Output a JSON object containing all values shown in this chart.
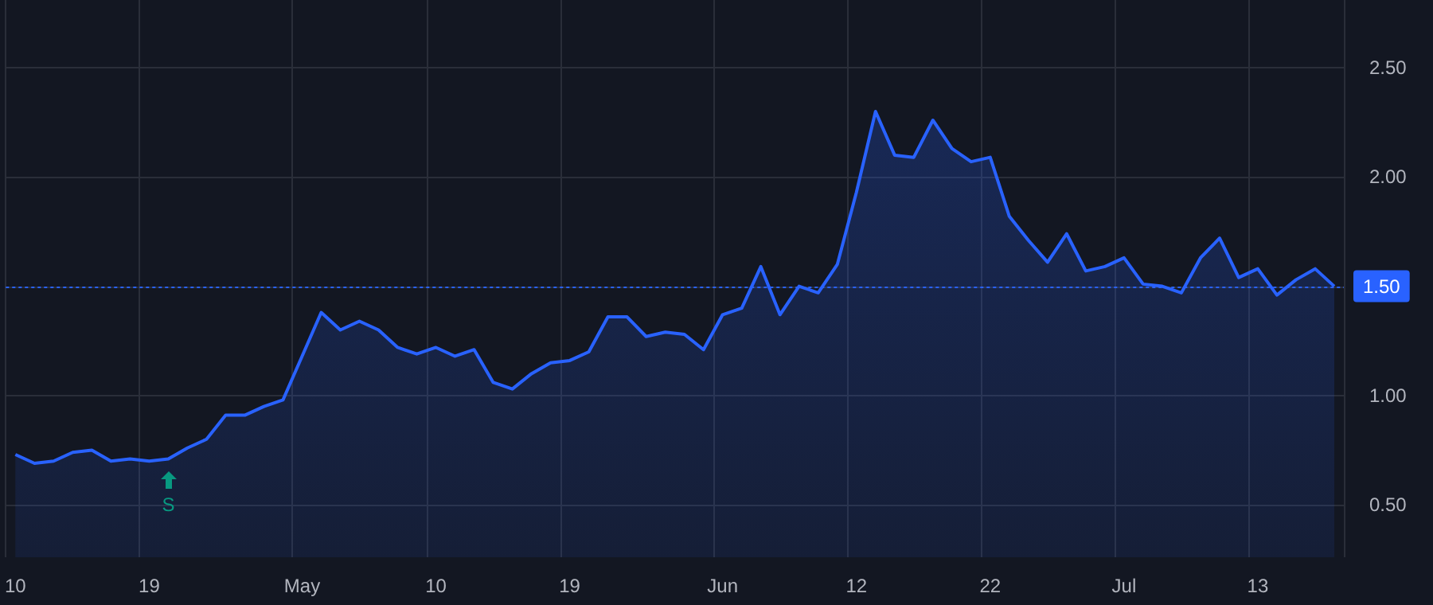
{
  "chart_data": {
    "type": "area",
    "categories": [
      "10",
      null,
      null,
      null,
      null,
      null,
      null,
      "19",
      null,
      null,
      null,
      null,
      null,
      null,
      null,
      "May",
      null,
      null,
      null,
      null,
      null,
      null,
      "10",
      null,
      null,
      null,
      null,
      null,
      null,
      "19",
      null,
      null,
      null,
      null,
      null,
      null,
      null,
      "Jun",
      null,
      null,
      null,
      null,
      null,
      null,
      "12",
      null,
      null,
      null,
      null,
      null,
      null,
      "22",
      null,
      null,
      null,
      null,
      null,
      null,
      "Jul",
      null,
      null,
      null,
      null,
      null,
      null,
      "13",
      null,
      null,
      null,
      null
    ],
    "series": [
      {
        "color": "#2962ff",
        "values": [
          0.73,
          0.69,
          0.7,
          0.74,
          0.75,
          0.7,
          0.71,
          0.7,
          0.71,
          0.76,
          0.8,
          0.91,
          0.91,
          0.95,
          0.98,
          1.18,
          1.38,
          1.3,
          1.34,
          1.3,
          1.22,
          1.19,
          1.22,
          1.18,
          1.21,
          1.06,
          1.03,
          1.1,
          1.15,
          1.16,
          1.2,
          1.36,
          1.36,
          1.27,
          1.29,
          1.28,
          1.21,
          1.37,
          1.4,
          1.59,
          1.37,
          1.5,
          1.47,
          1.6,
          1.93,
          2.3,
          2.1,
          2.09,
          2.26,
          2.13,
          2.07,
          2.09,
          1.82,
          1.71,
          1.61,
          1.74,
          1.57,
          1.59,
          1.63,
          1.51,
          1.5,
          1.47,
          1.63,
          1.72,
          1.54,
          1.58,
          1.46,
          1.53,
          1.58,
          1.5
        ]
      }
    ],
    "ylim": [
      0.26,
      2.81
    ],
    "yticks": [
      {
        "value": 0.5,
        "label": "0.50"
      },
      {
        "value": 1.0,
        "label": "1.00"
      },
      {
        "value": 1.5,
        "label": null
      },
      {
        "value": 2.0,
        "label": "2.00"
      },
      {
        "value": 2.5,
        "label": "2.50"
      }
    ],
    "grid": true,
    "ref_lines": [
      {
        "axis": "y",
        "value": 1.5,
        "label": "1.50",
        "color": "#2962ff",
        "line_style": "dotted"
      }
    ],
    "annotations": [
      {
        "text": "S",
        "y": 0.71
      }
    ]
  }
}
